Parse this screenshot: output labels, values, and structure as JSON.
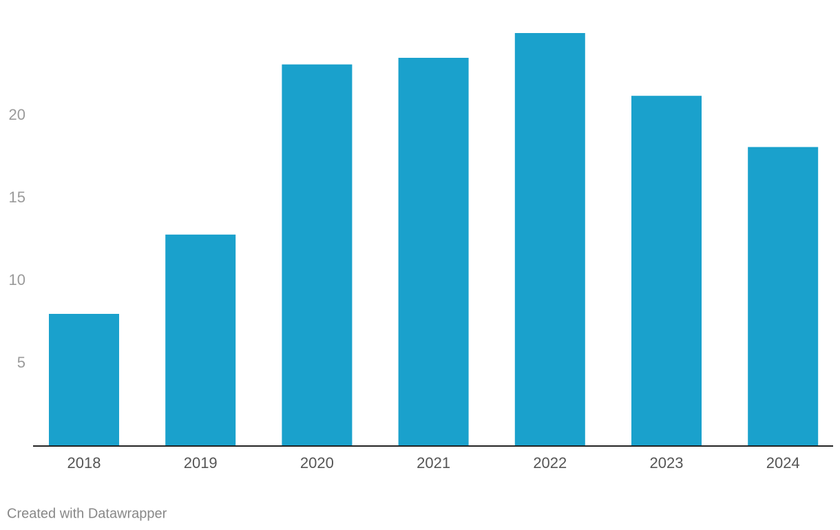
{
  "chart_data": {
    "type": "bar",
    "categories": [
      "2018",
      "2019",
      "2020",
      "2021",
      "2022",
      "2023",
      "2024"
    ],
    "values": [
      8.0,
      12.8,
      23.1,
      23.5,
      25.0,
      21.2,
      18.1
    ],
    "color": "#1aa1cc",
    "ylim": [
      0,
      25
    ],
    "yticks": [
      5,
      10,
      15,
      20
    ],
    "grid": false,
    "credit": "Created with Datawrapper"
  }
}
